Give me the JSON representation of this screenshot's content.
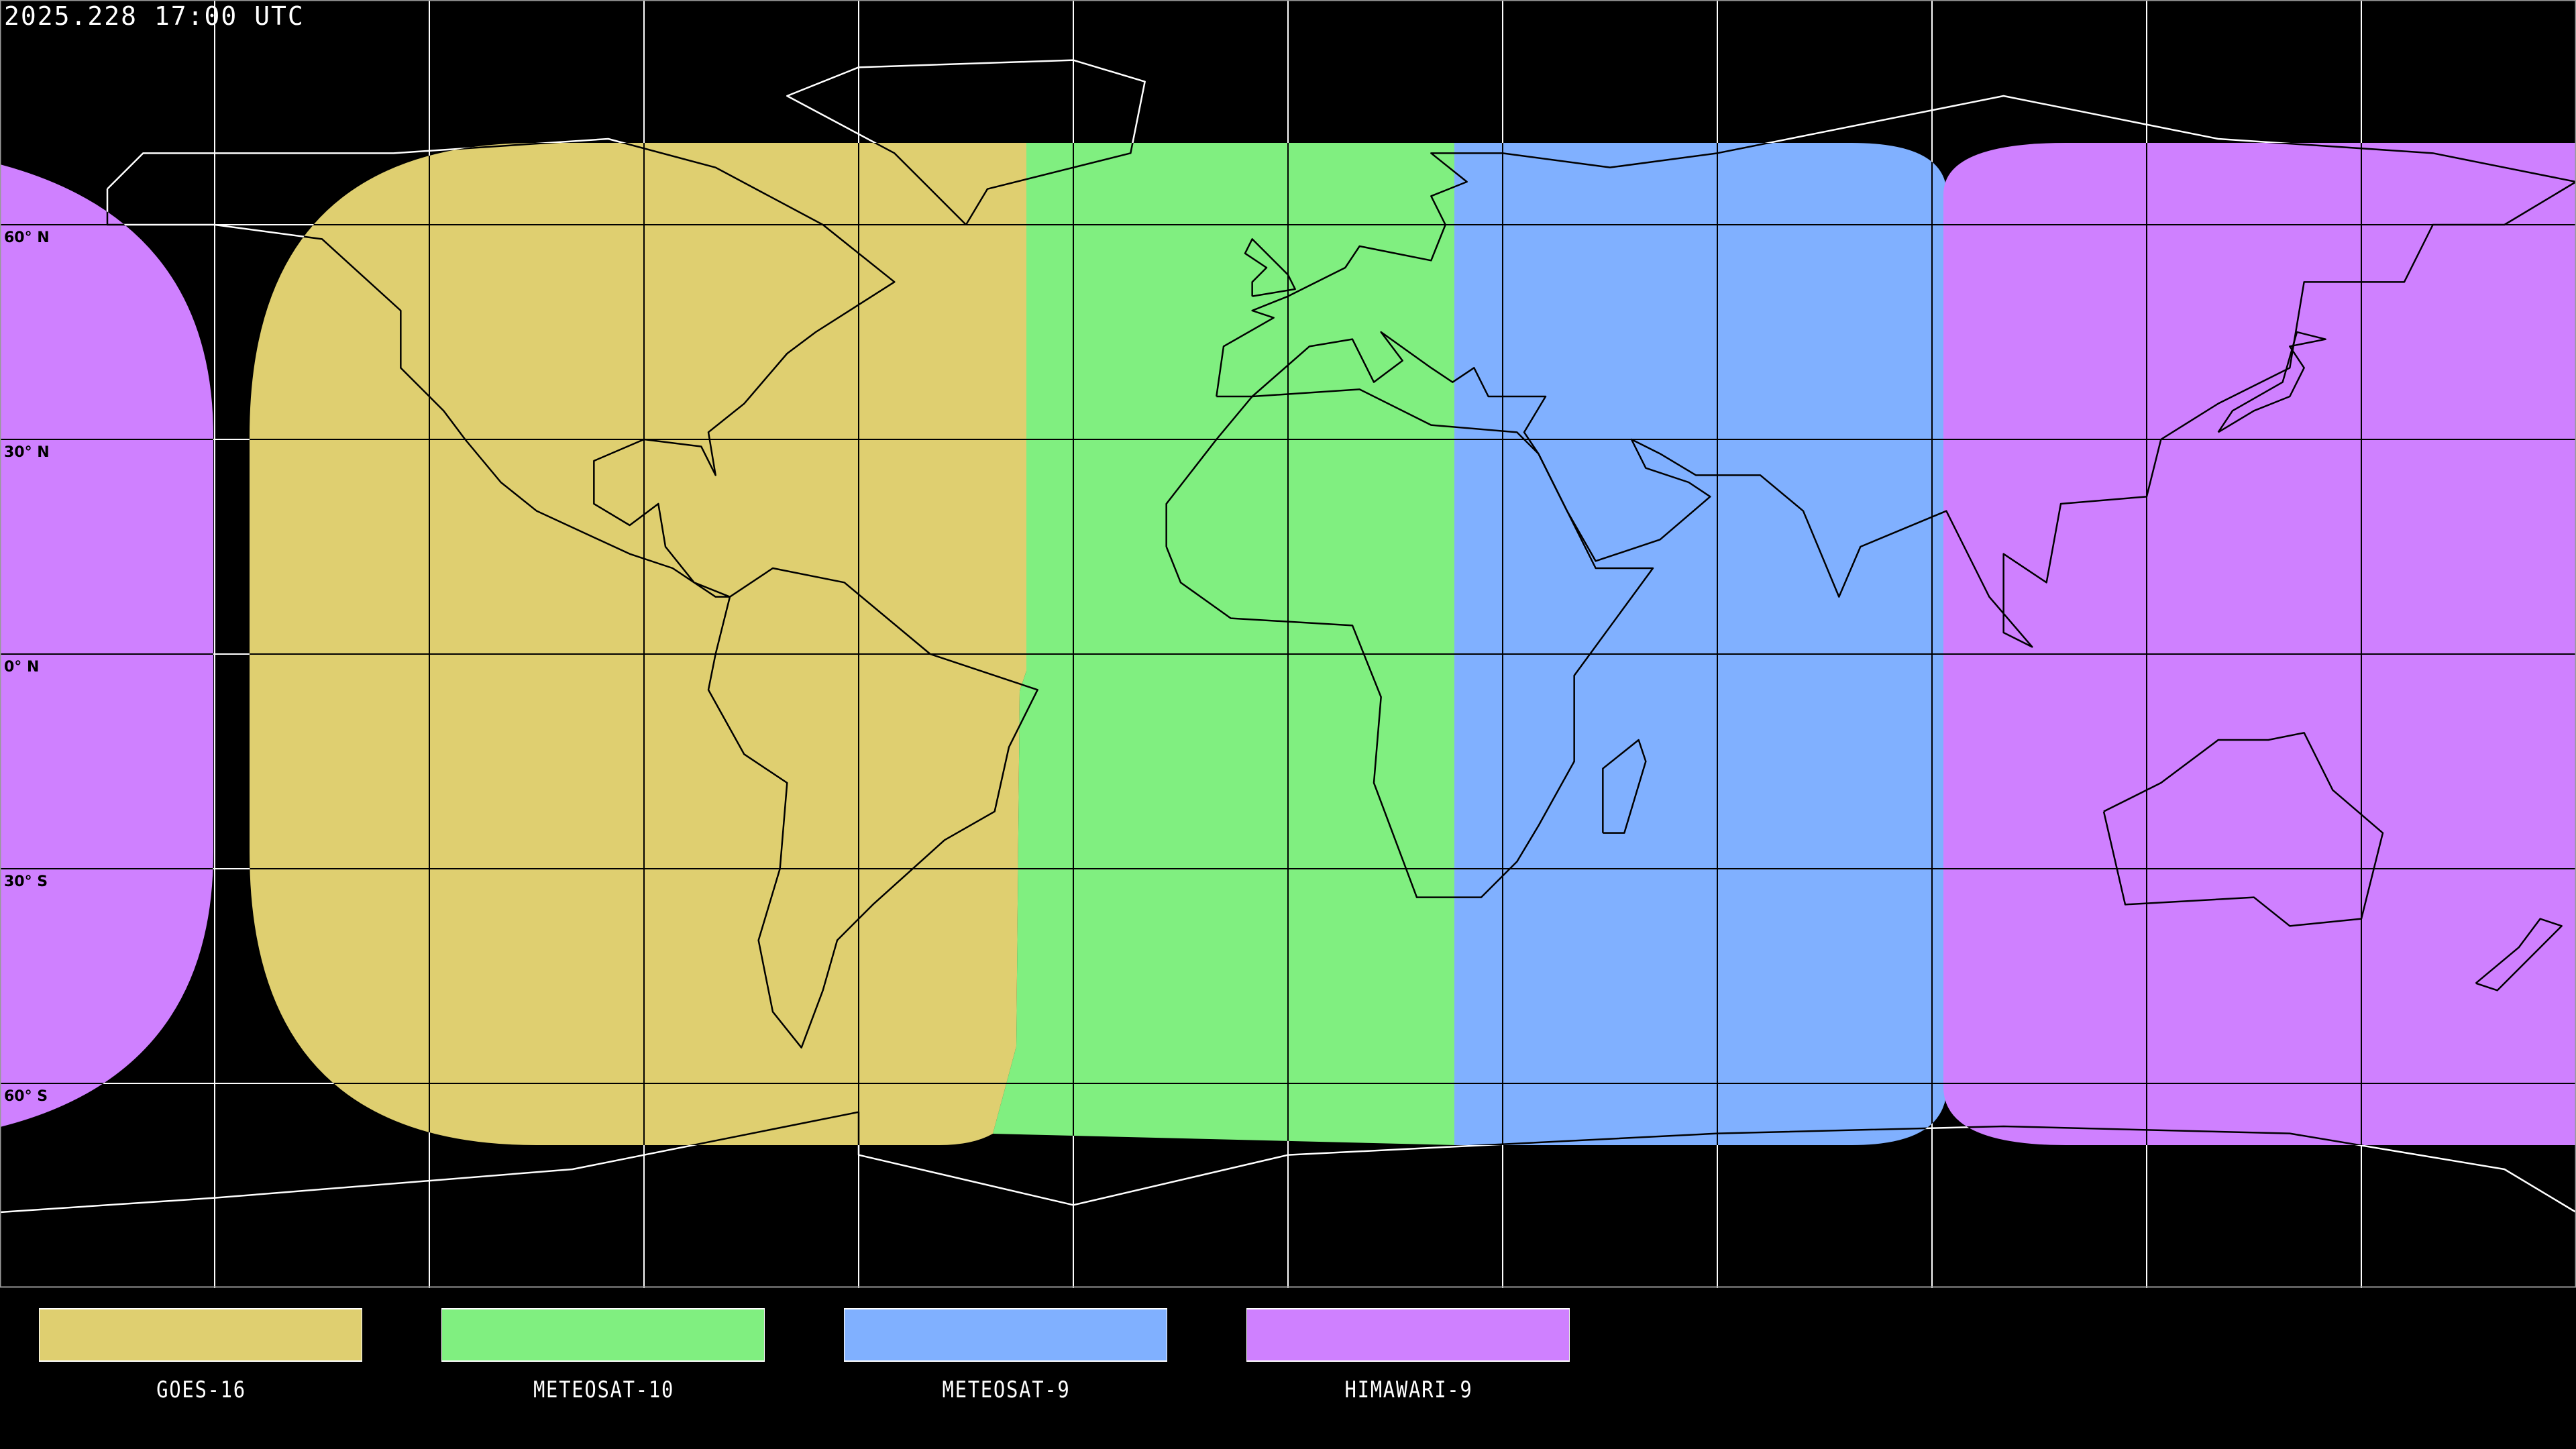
{
  "header": {
    "timestamp": "2025.228 17:00 UTC"
  },
  "map": {
    "projection": "equirectangular",
    "grid_spacing_deg": 30,
    "lat_labels": [
      "60° N",
      "30° N",
      "0° N",
      "30° S",
      "60° S"
    ],
    "background": "#000000"
  },
  "legend": [
    {
      "label": "GOES-16",
      "color": "#dfcf70"
    },
    {
      "label": "METEOSAT-10",
      "color": "#80ef80"
    },
    {
      "label": "METEOSAT-9",
      "color": "#80b0ff"
    },
    {
      "label": "HIMAWARI-9",
      "color": "#cf80ff"
    }
  ]
}
